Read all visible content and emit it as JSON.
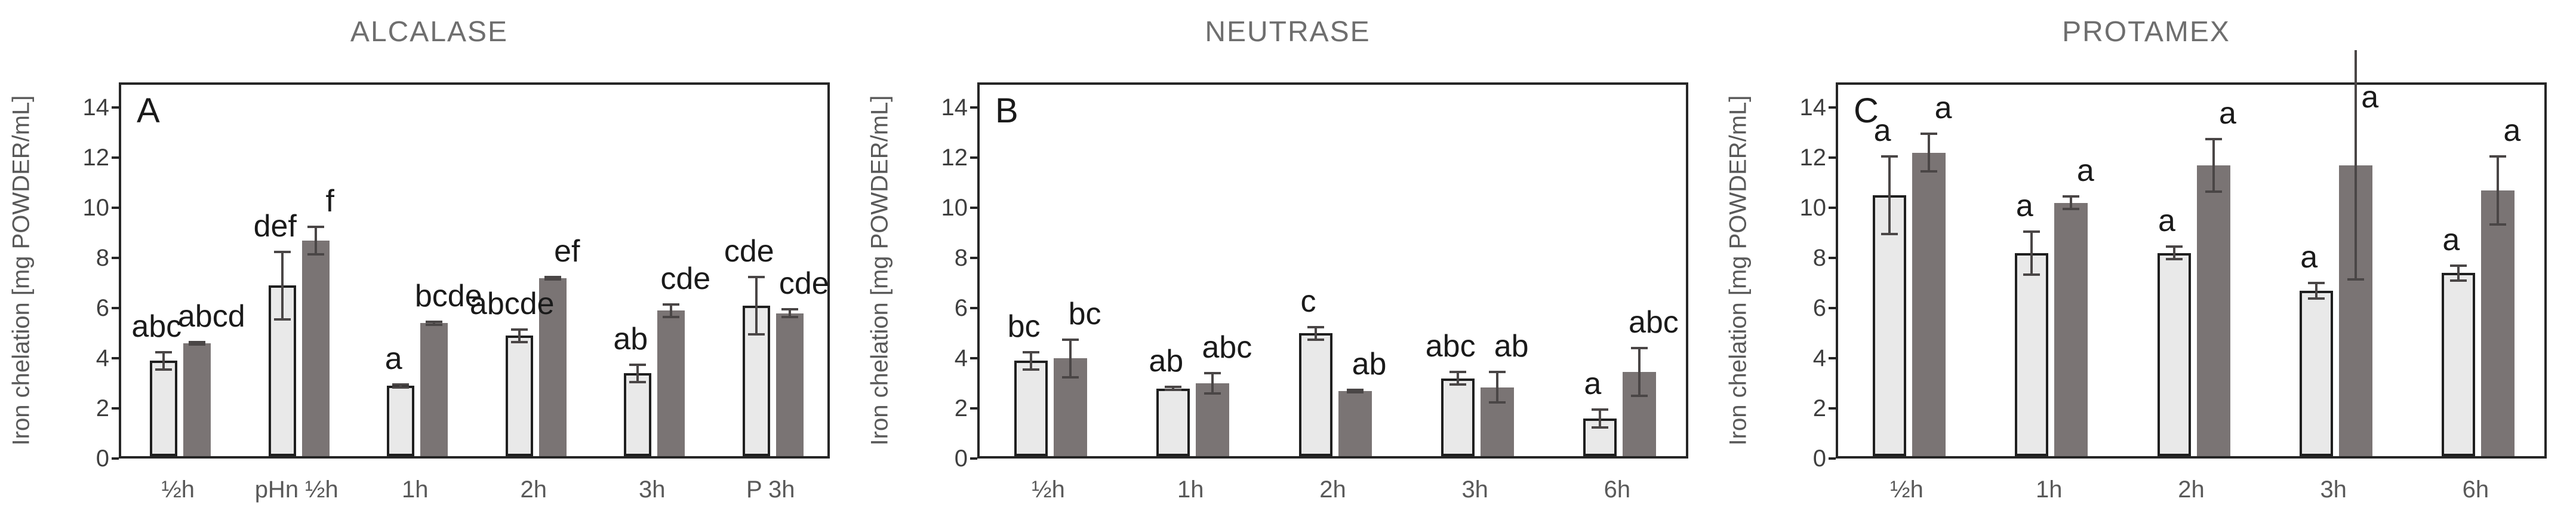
{
  "figure": {
    "y_axis_title": "Iron chelation [mg POWDER/mL]",
    "y_ticks": [
      "0",
      "2",
      "4",
      "6",
      "8",
      "10",
      "12",
      "14"
    ],
    "y_tick_values": [
      0,
      2,
      4,
      6,
      8,
      10,
      12,
      14
    ],
    "y_max": 15,
    "colors": {
      "light_bar_fill": "#e9e9e9",
      "light_bar_border": "#1f1f1f",
      "dark_bar_fill": "#7a7474",
      "error_bar": "#4a4646",
      "frame": "#262626",
      "panel_title_text": "#6e6e6e",
      "axis_text": "#595959",
      "tick_text": "#3f3f3f",
      "sig_text": "#1a1a1a"
    }
  },
  "chart_data": [
    {
      "type": "bar",
      "title": "ALCALASE",
      "panel_label": "A",
      "xlabel": "",
      "ylabel": "Iron chelation [mg POWDER/mL]",
      "ylim": [
        0,
        15
      ],
      "grid": false,
      "legend": "none",
      "categories": [
        "½h",
        "pHn ½h",
        "1h",
        "2h",
        "3h",
        "P 3h"
      ],
      "series": [
        {
          "name": "light_gray_bars",
          "values": [
            3.8,
            6.8,
            2.8,
            4.8,
            3.3,
            6.0
          ],
          "errors": [
            0.4,
            1.4,
            0.1,
            0.3,
            0.4,
            1.2
          ],
          "sig_labels": [
            "abc",
            "def",
            "a",
            "abcde",
            "ab",
            "cde"
          ]
        },
        {
          "name": "dark_gray_bars",
          "values": [
            4.5,
            8.6,
            5.3,
            7.1,
            5.8,
            5.7
          ],
          "errors": [
            0.1,
            0.6,
            0.1,
            0.1,
            0.3,
            0.2
          ],
          "sig_labels": [
            "abcd",
            "f",
            "bcde",
            "ef",
            "cde",
            "cde"
          ]
        }
      ]
    },
    {
      "type": "bar",
      "title": "NEUTRASE",
      "panel_label": "B",
      "xlabel": "",
      "ylabel": "Iron chelation [mg POWDER/mL]",
      "ylim": [
        0,
        15
      ],
      "grid": false,
      "legend": "none",
      "categories": [
        "½h",
        "1h",
        "2h",
        "3h",
        "6h"
      ],
      "series": [
        {
          "name": "light_gray_bars",
          "values": [
            3.8,
            2.7,
            4.9,
            3.1,
            1.5
          ],
          "errors": [
            0.4,
            0.1,
            0.3,
            0.3,
            0.4
          ],
          "sig_labels": [
            "bc",
            "ab",
            "c",
            "abc",
            "a"
          ]
        },
        {
          "name": "dark_gray_bars",
          "values": [
            3.9,
            2.9,
            2.6,
            2.75,
            3.35
          ],
          "errors": [
            0.8,
            0.45,
            0.1,
            0.65,
            1.0
          ],
          "sig_labels": [
            "bc",
            "abc",
            "ab",
            "ab",
            "abc"
          ]
        }
      ]
    },
    {
      "type": "bar",
      "title": "PROTAMEX",
      "panel_label": "C",
      "xlabel": "",
      "ylabel": "Iron chelation [mg POWDER/mL]",
      "ylim": [
        0,
        15
      ],
      "grid": false,
      "legend": "none",
      "categories": [
        "½h",
        "1h",
        "2h",
        "3h",
        "6h"
      ],
      "series": [
        {
          "name": "light_gray_bars",
          "values": [
            10.4,
            8.1,
            8.1,
            6.6,
            7.3
          ],
          "errors": [
            1.6,
            0.9,
            0.3,
            0.35,
            0.35
          ],
          "sig_labels": [
            "a",
            "a",
            "a",
            "a",
            "a"
          ]
        },
        {
          "name": "dark_gray_bars",
          "values": [
            12.1,
            10.1,
            11.6,
            11.6,
            10.6
          ],
          "errors": [
            0.8,
            0.3,
            1.1,
            4.6,
            1.4
          ],
          "sig_labels": [
            "a",
            "a",
            "a",
            "a",
            "a"
          ]
        }
      ]
    }
  ]
}
